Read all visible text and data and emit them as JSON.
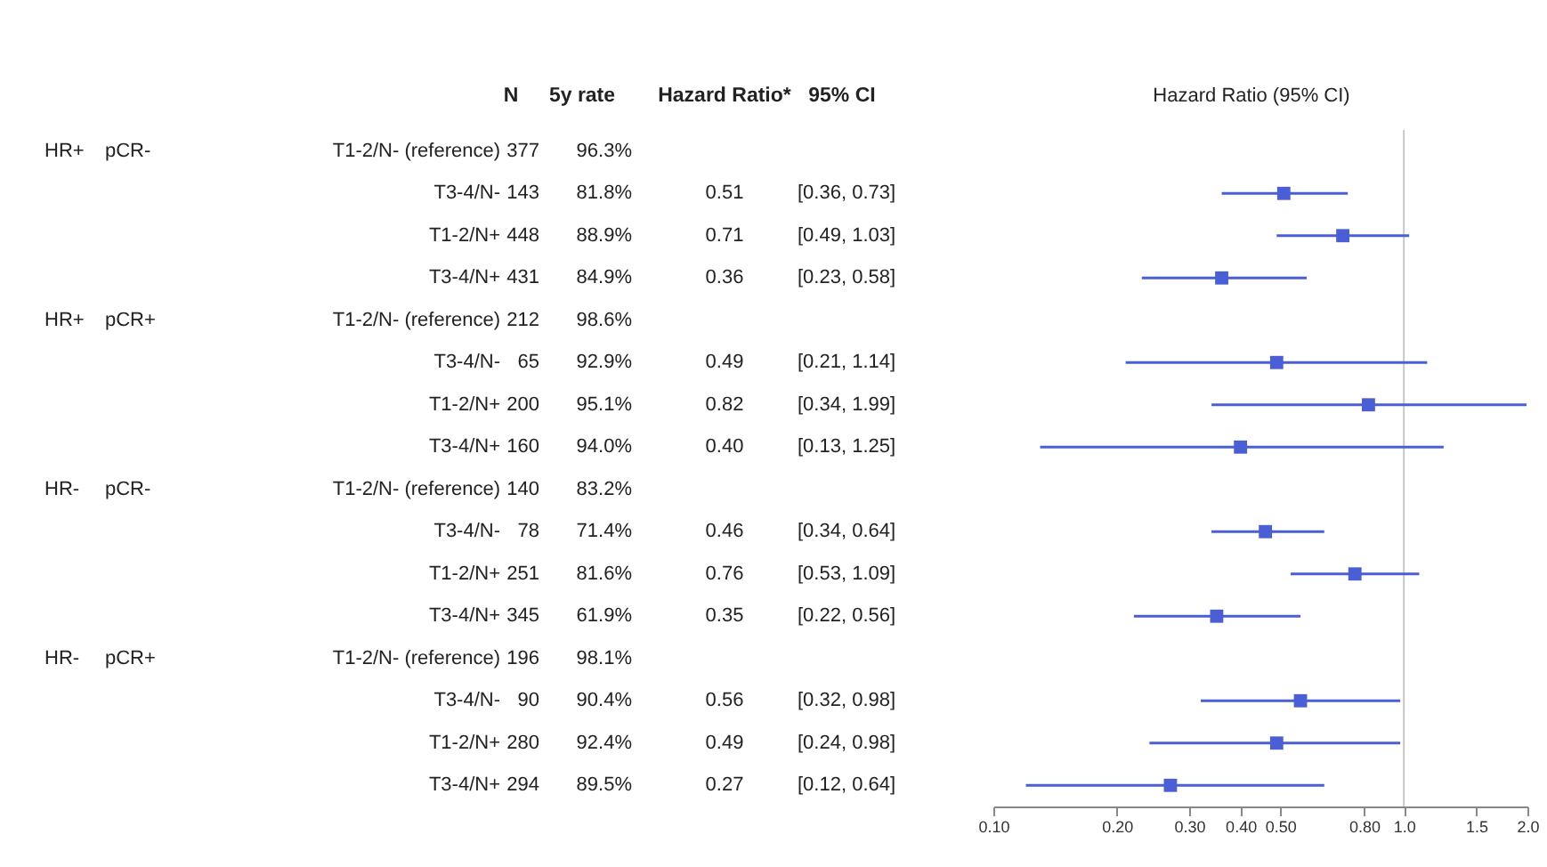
{
  "chart_data": [
    {
      "type": "other",
      "annotations": [
        "N",
        "5y rate",
        "Hazard Ratio*",
        "95% CI",
        "HR+",
        "pCR-",
        "T1-2/N- (reference)",
        "377",
        "96.3%",
        null,
        null,
        null,
        null,
        "T3-4/N-",
        "143",
        "81.8%",
        "0.51",
        "[0.36, 0.73]",
        null,
        null,
        "T1-2/N+",
        "448",
        "88.9%",
        "0.71",
        "[0.49, 1.03]",
        null,
        null,
        "T3-4/N+",
        "431",
        "84.9%",
        "0.36",
        "[0.23, 0.58]",
        "HR+",
        "pCR+",
        "T1-2/N- (reference)",
        "212",
        "98.6%",
        null,
        null,
        null,
        null,
        "T3-4/N-",
        "65",
        "92.9%",
        "0.49",
        "[0.21, 1.14]",
        null,
        null,
        "T1-2/N+",
        "200",
        "95.1%",
        "0.82",
        "[0.34, 1.99]",
        null,
        null,
        "T3-4/N+",
        "160",
        "94.0%",
        "0.40",
        "[0.13, 1.25]",
        "HR-",
        "pCR-",
        "T1-2/N- (reference)",
        "140",
        "83.2%",
        null,
        null,
        null,
        null,
        "T3-4/N-",
        "78",
        "71.4%",
        "0.46",
        "[0.34, 0.64]",
        null,
        null,
        "T1-2/N+",
        "251",
        "81.6%",
        "0.76",
        "[0.53, 1.09]",
        null,
        null,
        "T3-4/N+",
        "345",
        "61.9%",
        "0.35",
        "[0.22, 0.56]",
        "HR-",
        "pCR+",
        "T1-2/N- (reference)",
        "196",
        "98.1%",
        null,
        null,
        null,
        null,
        "T3-4/N-",
        "90",
        "90.4%",
        "0.56",
        "[0.32, 0.98]",
        null,
        null,
        "T1-2/N+",
        "280",
        "92.4%",
        "0.49",
        "[0.24, 0.98]",
        null,
        null,
        "T3-4/N+",
        "294",
        "89.5%",
        "0.27",
        "[0.12, 0.64]"
      ]
    },
    {
      "type": "scatter",
      "title": "Hazard Ratio (95% CI)",
      "marker": "square",
      "orientation": "horizontal",
      "categories": [
        null,
        null,
        null,
        null,
        null,
        null,
        null,
        null,
        null,
        null,
        null,
        null,
        null,
        null,
        null,
        null
      ],
      "series": [
        {
          "color": "#4a5fd6",
          "values": [
            null,
            0.51,
            0.71,
            0.36,
            null,
            0.49,
            0.82,
            0.4,
            null,
            0.46,
            0.76,
            0.35,
            null,
            0.56,
            0.49,
            0.27
          ],
          "errors": [
            null,
            [
              0.36,
              0.73
            ],
            [
              0.49,
              1.03
            ],
            [
              0.23,
              0.58
            ],
            null,
            [
              0.21,
              1.14
            ],
            [
              0.34,
              1.99
            ],
            [
              0.13,
              1.25
            ],
            null,
            [
              0.34,
              0.64
            ],
            [
              0.53,
              1.09
            ],
            [
              0.22,
              0.56
            ],
            null,
            [
              0.32,
              0.98
            ],
            [
              0.24,
              0.98
            ],
            [
              0.12,
              0.64
            ]
          ]
        }
      ],
      "log": "x",
      "xlim": [
        0.1,
        2.0
      ],
      "xticks": [
        {
          "value": 0.1,
          "label": "0.10"
        },
        {
          "value": 0.2,
          "label": "0.20"
        },
        {
          "value": 0.3,
          "label": "0.30"
        },
        {
          "value": 0.4,
          "label": "0.40"
        },
        {
          "value": 0.5,
          "label": "0.50"
        },
        {
          "value": 0.8,
          "label": "0.80"
        },
        {
          "value": 1,
          "label": "1.0"
        },
        {
          "value": 1.5,
          "label": "1.5"
        },
        {
          "value": 2,
          "label": "2.0"
        }
      ],
      "ref_lines": [
        {
          "axis": "x",
          "value": 1,
          "color": "#c8c8c8"
        }
      ]
    }
  ]
}
